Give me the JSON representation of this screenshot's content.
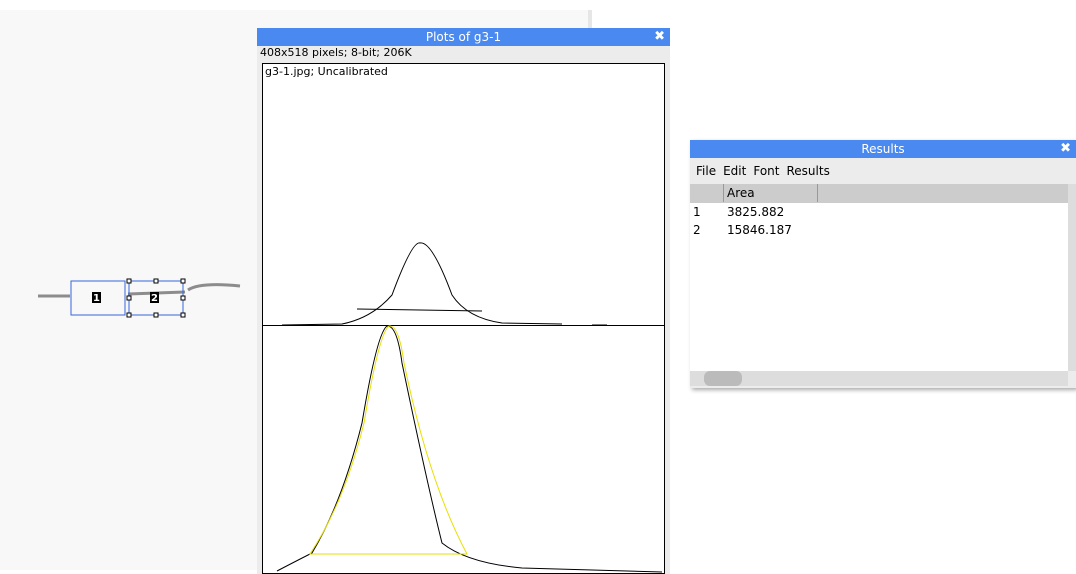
{
  "image": {
    "roi_labels": [
      "1",
      "2"
    ]
  },
  "plot_window": {
    "title": "Plots of g3-1",
    "info": "408x518 pixels; 8-bit; 206K",
    "label": "g3-1.jpg; Uncalibrated"
  },
  "results_window": {
    "title": "Results",
    "menu": [
      "File",
      "Edit",
      "Font",
      "Results"
    ],
    "table": {
      "header": "Area",
      "rows": [
        [
          "1",
          "3825.882"
        ],
        [
          "2",
          "15846.187"
        ]
      ]
    }
  }
}
